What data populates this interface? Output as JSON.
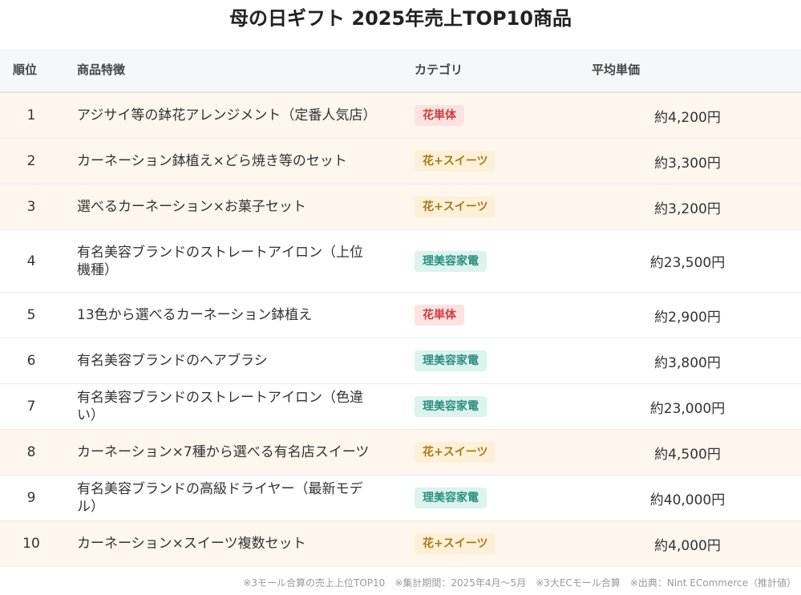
{
  "title": "母の日ギフト 2025年売上TOP10商品",
  "table": {
    "headers": {
      "rank": "順位",
      "name": "商品特徴",
      "category": "カテゴリ",
      "price": "平均単価"
    },
    "rows": [
      {
        "rank": "1",
        "name": "アジサイ等の鉢花アレンジメント（定番人気店）",
        "category": "花単体",
        "price": "約4,200円"
      },
      {
        "rank": "2",
        "name": "カーネーション鉢植え×どら焼き等のセット",
        "category": "花+スイーツ",
        "price": "約3,300円"
      },
      {
        "rank": "3",
        "name": "選べるカーネーション×お菓子セット",
        "category": "花+スイーツ",
        "price": "約3,200円"
      },
      {
        "rank": "4",
        "name": "有名美容ブランドのストレートアイロン（上位機種）",
        "category": "理美容家電",
        "price": "約23,500円"
      },
      {
        "rank": "5",
        "name": "13色から選べるカーネーション鉢植え",
        "category": "花単体",
        "price": "約2,900円"
      },
      {
        "rank": "6",
        "name": "有名美容ブランドのヘアブラシ",
        "category": "理美容家電",
        "price": "約3,800円"
      },
      {
        "rank": "7",
        "name": "有名美容ブランドのストレートアイロン（色違い）",
        "category": "理美容家電",
        "price": "約23,000円"
      },
      {
        "rank": "8",
        "name": "カーネーション×7種から選べる有名店スイーツ",
        "category": "花+スイーツ",
        "price": "約4,500円"
      },
      {
        "rank": "9",
        "name": "有名美容ブランドの高級ドライヤー（最新モデル）",
        "category": "理美容家電",
        "price": "約40,000円"
      },
      {
        "rank": "10",
        "name": "カーネーション×スイーツ複数セット",
        "category": "花+スイーツ",
        "price": "約4,000円"
      }
    ]
  },
  "category_colors": {
    "花単体": {
      "bg": "#fde2e2",
      "fg": "#d33a3a"
    },
    "花+スイーツ": {
      "bg": "#fdf0d8",
      "fg": "#a57b15"
    },
    "理美容家電": {
      "bg": "#dcf3ee",
      "fg": "#2b8f7d"
    }
  },
  "highlight_row_color": "#fff6ed",
  "footnote": "※3モール合算の売上上位TOP10　※集計期間：2025年4月～5月　※3大ECモール合算　※出典：Nint ECommerce（推計値）"
}
